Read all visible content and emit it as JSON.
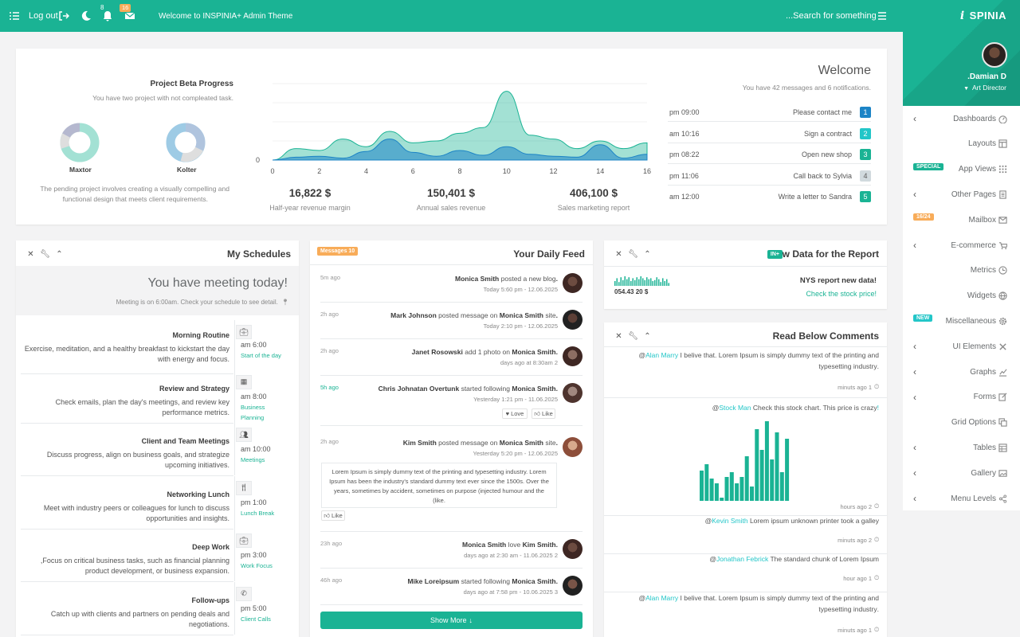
{
  "topbar": {
    "logout": "Log out",
    "bell_count": "8",
    "mail_count": "16",
    "welcome": "Welcome to INSPINIA+ Admin Theme",
    "search": "...Search for something"
  },
  "brand": {
    "logo": "SPINIA",
    "user_name": ".Damian D",
    "user_role": "Art Director"
  },
  "nav": [
    {
      "label": "Dashboards",
      "icon": "gauge-icon",
      "chevron": true
    },
    {
      "label": "Layouts",
      "icon": "layout-icon",
      "chevron": false
    },
    {
      "label": "App Views",
      "icon": "grid-icon",
      "chevron": false,
      "badge": "SPECIAL",
      "badge_color": "#1ab394"
    },
    {
      "label": "Other Pages",
      "icon": "page-icon",
      "chevron": true
    },
    {
      "label": "Mailbox",
      "icon": "envelope-icon",
      "chevron": false,
      "badge": "16/24",
      "badge_color": "#f8ac59"
    },
    {
      "label": "E-commerce",
      "icon": "cart-icon",
      "chevron": true
    },
    {
      "label": "Metrics",
      "icon": "clock-icon",
      "chevron": false
    },
    {
      "label": "Widgets",
      "icon": "globe-icon",
      "chevron": false
    },
    {
      "label": "Miscellaneous",
      "icon": "gear-icon",
      "chevron": false,
      "badge": "NEW",
      "badge_color": "#23c6c8"
    },
    {
      "label": "UI Elements",
      "icon": "tools-icon",
      "chevron": true
    },
    {
      "label": "Graphs",
      "icon": "chart-icon",
      "chevron": true
    },
    {
      "label": "Forms",
      "icon": "edit-icon",
      "chevron": true
    },
    {
      "label": "Grid Options",
      "icon": "copy-icon",
      "chevron": false
    },
    {
      "label": "Tables",
      "icon": "table-icon",
      "chevron": true
    },
    {
      "label": "Gallery",
      "icon": "image-icon",
      "chevron": true
    },
    {
      "label": "Menu Levels",
      "icon": "share-icon",
      "chevron": true
    }
  ],
  "overview": {
    "project_title": "Project Beta Progress",
    "project_sub": ".You have two project with not compleated task",
    "donut1_label": "Maxtor",
    "donut2_label": "Kolter",
    "project_desc1": "The pending project involves creating a visually compelling and",
    "project_desc2": ".functional design that meets client requirements",
    "stats": [
      {
        "value": "16,822 $",
        "label": "Half-year revenue margin"
      },
      {
        "value": "150,401 $",
        "label": "Annual sales revenue"
      },
      {
        "value": "406,100 $",
        "label": "Sales marketing report"
      }
    ],
    "welcome_title": "Welcome",
    "welcome_sub": ".You have 42 messages and 6 notifications",
    "tasks": [
      {
        "time": "pm 09:00",
        "text": "Please contact me",
        "num": "1",
        "color": "#1c84c6"
      },
      {
        "time": "am 10:16",
        "text": "Sign a contract",
        "num": "2",
        "color": "#23c6c8"
      },
      {
        "time": "pm 08:22",
        "text": "Open new shop",
        "num": "3",
        "color": "#1ab394"
      },
      {
        "time": "pm 11:06",
        "text": "Call back to Sylvia",
        "num": "4",
        "color": "#d1dade"
      },
      {
        "time": "am 12:00",
        "text": "Write a letter to Sandra",
        "num": "5",
        "color": "#1ab394"
      }
    ]
  },
  "chart_data": {
    "type": "area",
    "x": [
      0,
      1,
      2,
      3,
      4,
      5,
      6,
      7,
      8,
      9,
      10,
      11,
      12,
      13,
      14,
      15,
      16
    ],
    "x_ticks": [
      "0",
      "2",
      "4",
      "6",
      "8",
      "10",
      "12",
      "14",
      "16"
    ],
    "y_ticks": [
      "0"
    ],
    "series": [
      {
        "values": [
          0,
          12,
          10,
          22,
          14,
          30,
          18,
          20,
          28,
          34,
          72,
          26,
          22,
          12,
          20,
          12,
          18
        ],
        "color": "#1ab394"
      },
      {
        "values": [
          0,
          3,
          4,
          2,
          9,
          22,
          8,
          4,
          10,
          5,
          14,
          6,
          4,
          3,
          16,
          2,
          6
        ],
        "color": "#1c84c6"
      }
    ],
    "ylim": [
      0,
      80
    ]
  },
  "schedules": {
    "title": "My Schedules",
    "alert_title": "!You have meeting today",
    "alert_sub": ".Meeting is on 6:00am. Check your schedule to see detail",
    "items": [
      {
        "title": "Morning Routine",
        "desc1": "Exercise, meditation, and a healthy breakfast to kickstart the day",
        "desc2": ".with energy and focus",
        "time": "am 6:00",
        "tag1": "Start of the day",
        "tag2": "",
        "icon": "briefcase-icon"
      },
      {
        "title": "Review and Strategy",
        "desc1": "Check emails, plan the day's meetings, and review key",
        "desc2": ".performance metrics",
        "time": "am 8:00",
        "tag1": "Business",
        "tag2": "Planning",
        "icon": "calendar-icon"
      },
      {
        "title": "Client and Team Meetings",
        "desc1": "Discuss progress, align on business goals, and strategize",
        "desc2": ".upcoming initiatives",
        "time": "am 10:00",
        "tag1": "Meetings",
        "tag2": "",
        "icon": "users-icon"
      },
      {
        "title": "Networking Lunch",
        "desc1": "Meet with industry peers or colleagues for lunch to discuss",
        "desc2": ".opportunities and insights",
        "time": "pm 1:00",
        "tag1": "Lunch Break",
        "tag2": "",
        "icon": "cutlery-icon"
      },
      {
        "title": "Deep Work",
        "desc1": "Focus on critical business tasks, such as financial planning,",
        "desc2": ".product development, or business expansion",
        "time": "pm 3:00",
        "tag1": "Work Focus",
        "tag2": "",
        "icon": "briefcase-icon"
      },
      {
        "title": "Follow-ups",
        "desc1": "Catch up with clients and partners on pending deals and",
        "desc2": ".negotiations",
        "time": "pm 5:00",
        "tag1": "Client Calls",
        "tag2": "",
        "icon": "phone-icon"
      }
    ]
  },
  "feed": {
    "title": "Your Daily Feed",
    "badge": "Messages 10",
    "items": [
      {
        "ago": "5m ago",
        "a": ".Monica Smith",
        "mid": "posted a new blog",
        "b": "",
        "end": "",
        "date": "Today 5:60 pm - 12.06.2025",
        "green": false
      },
      {
        "ago": "2h ago",
        "a": ".Mark Johnson",
        "mid": "posted message on",
        "b": "Monica Smith",
        "end": "site",
        "date": "Today 2:10 pm - 12.06.2025",
        "green": false
      },
      {
        "ago": "2h ago",
        "a": ".Janet Rosowski",
        "mid": "add 1 photo on",
        "b": "Monica Smith",
        "end": "",
        "date": "days ago at 8:30am 2",
        "green": false
      },
      {
        "ago": "5h ago",
        "a": ".Chris Johnatan Overtunk",
        "mid": "started following",
        "b": "Monica Smith",
        "end": "",
        "date": "Yesterday 1:21 pm - 11.06.2025",
        "green": true
      },
      {
        "ago": "2h ago",
        "a": ".Kim Smith",
        "mid": "posted message on",
        "b": "Monica Smith",
        "end": "site",
        "date": "Yesterday 5:20 pm - 12.06.2025",
        "green": false
      },
      {
        "ago": "23h ago",
        "a": ".Monica Smith",
        "mid": "love",
        "b": "Kim Smith",
        "end": "",
        "date": "days ago at 2:30 am - 11.06.2025 2",
        "green": false
      },
      {
        "ago": "46h ago",
        "a": ".Mike Loreipsum",
        "mid": "started following",
        "b": "Monica Smith",
        "end": "",
        "date": "days ago at 7:58 pm - 10.06.2025 3",
        "green": false
      }
    ],
    "love": "Love",
    "like": "Like",
    "quote1": "Lorem Ipsum is simply dummy text of the printing and typesetting industry. Lorem",
    "quote2": "Ipsum has been the industry's standard dummy text ever since the 1500s. Over the",
    "quote3": "years, sometimes by accident, sometimes on purpose (injected humour and the",
    "quote4": ".like)",
    "show_more": "Show More"
  },
  "report": {
    "title": "New Data for the Report",
    "badge": "+IN",
    "value": "054.43 20 $",
    "headline": "!NYS report new data",
    "link": "!Check the stock price",
    "spark": [
      5,
      8,
      4,
      9,
      6,
      10,
      7,
      9,
      5,
      8,
      6,
      9,
      7,
      10,
      8,
      6,
      9,
      7,
      8,
      5,
      6,
      9,
      7,
      4,
      8,
      5,
      7,
      3
    ]
  },
  "comments": {
    "title": "Read Below Comments",
    "items": [
      {
        "name": "Alan Marry",
        "text1": "I belive that. Lorem Ipsum is simply dummy text of the printing and@",
        "text2": ".typesetting industry",
        "time": "minuts ago 1"
      },
      {
        "name": "!Stock Man",
        "text1": "Check this stock chart. This price is crazy@",
        "text2": "",
        "time": "hours ago 2"
      },
      {
        "name": "Kevin Smith",
        "text1": "Lorem ipsum unknown printer took a galley@",
        "text2": "",
        "time": "minuts ago 2"
      },
      {
        "name": "Jonathan Febrick",
        "text1": "The standard chunk of Lorem Ipsum@",
        "text2": "",
        "time": "hour ago 1"
      },
      {
        "name": "Alan Marry",
        "text1": "I belive that. Lorem Ipsum is simply dummy text of the printing and@",
        "text2": ".typesetting industry",
        "time": "minuts ago 1"
      }
    ],
    "bars": [
      38,
      46,
      28,
      22,
      4,
      30,
      36,
      22,
      30,
      56,
      18,
      90,
      64,
      100,
      52,
      86,
      36,
      78
    ]
  }
}
